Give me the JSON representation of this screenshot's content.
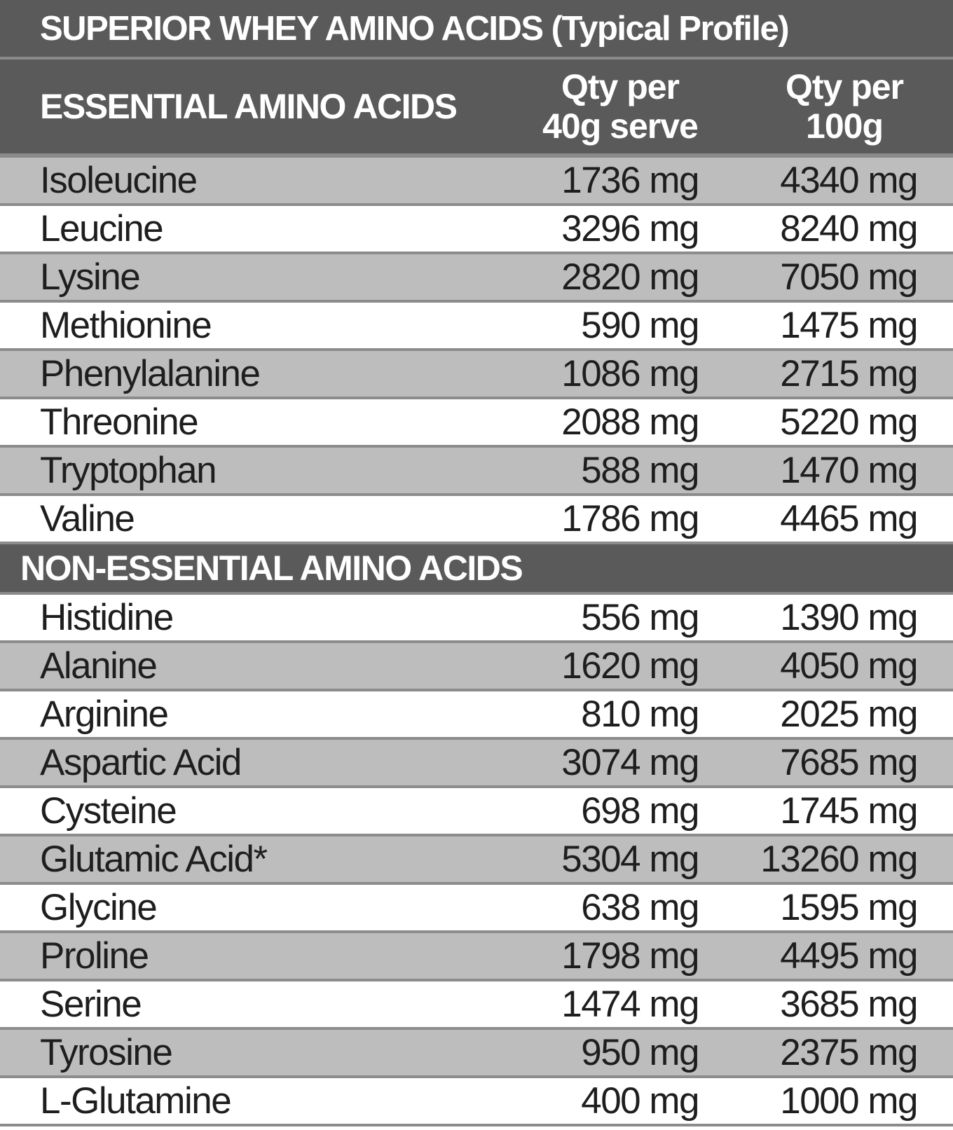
{
  "title": "SUPERIOR WHEY AMINO ACIDS (Typical Profile)",
  "header": {
    "essential_label": "ESSENTIAL AMINO ACIDS",
    "col_40_line1": "Qty per",
    "col_40_line2": "40g serve",
    "col_100_line1": "Qty per",
    "col_100_line2": "100g"
  },
  "essential": [
    {
      "name": "Isoleucine",
      "per40": "1736 mg",
      "per100": "4340 mg"
    },
    {
      "name": "Leucine",
      "per40": "3296 mg",
      "per100": "8240 mg"
    },
    {
      "name": "Lysine",
      "per40": "2820 mg",
      "per100": "7050 mg"
    },
    {
      "name": "Methionine",
      "per40": "590 mg",
      "per100": "1475 mg"
    },
    {
      "name": "Phenylalanine",
      "per40": "1086 mg",
      "per100": "2715 mg"
    },
    {
      "name": "Threonine",
      "per40": "2088 mg",
      "per100": "5220 mg"
    },
    {
      "name": "Tryptophan",
      "per40": "588 mg",
      "per100": "1470 mg"
    },
    {
      "name": "Valine",
      "per40": "1786 mg",
      "per100": "4465 mg"
    }
  ],
  "non_essential_label": "NON-ESSENTIAL AMINO ACIDS",
  "non_essential": [
    {
      "name": "Histidine",
      "per40": "556 mg",
      "per100": "1390 mg"
    },
    {
      "name": "Alanine",
      "per40": "1620 mg",
      "per100": "4050 mg"
    },
    {
      "name": "Arginine",
      "per40": "810 mg",
      "per100": "2025 mg"
    },
    {
      "name": "Aspartic Acid",
      "per40": "3074 mg",
      "per100": "7685 mg"
    },
    {
      "name": "Cysteine",
      "per40": "698 mg",
      "per100": "1745 mg"
    },
    {
      "name": "Glutamic Acid*",
      "per40": "5304 mg",
      "per100": "13260 mg"
    },
    {
      "name": "Glycine",
      "per40": "638 mg",
      "per100": "1595 mg"
    },
    {
      "name": "Proline",
      "per40": "1798 mg",
      "per100": "4495 mg"
    },
    {
      "name": "Serine",
      "per40": "1474 mg",
      "per100": "3685 mg"
    },
    {
      "name": "Tyrosine",
      "per40": "950 mg",
      "per100": "2375 mg"
    },
    {
      "name": "L-Glutamine",
      "per40": "400 mg",
      "per100": "1000 mg"
    }
  ],
  "colors": {
    "header_bg": "#5a5a5a",
    "shaded_row": "#bdbdbd",
    "plain_row": "#ffffff",
    "divider": "#8c8c8c"
  }
}
